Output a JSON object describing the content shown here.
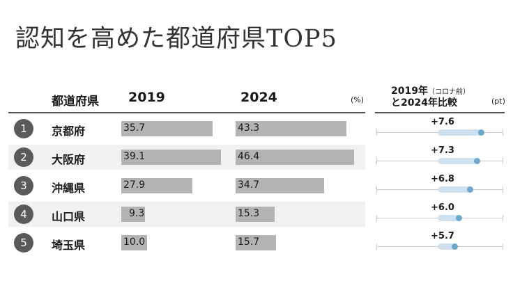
{
  "title": "認知を高めた都道府県TOP5",
  "chart_data": {
    "type": "bar",
    "title": "認知を高めた都道府県TOP5",
    "columns": {
      "prefecture": "都道府県",
      "y2019": "2019",
      "y2024": "2024",
      "percent_unit": "(%)",
      "diff_line1": "2019年",
      "diff_line1_note": "（コロナ前）",
      "diff_line2": "と2024年比較",
      "diff_unit": "(pt)"
    },
    "categories": [
      "京都府",
      "大阪府",
      "沖縄県",
      "山口県",
      "埼玉県"
    ],
    "ranks": [
      "1",
      "2",
      "3",
      "4",
      "5"
    ],
    "series": [
      {
        "name": "2019",
        "values": [
          35.7,
          39.1,
          27.9,
          9.3,
          10.0
        ]
      },
      {
        "name": "2024",
        "values": [
          43.3,
          46.4,
          34.7,
          15.3,
          15.7
        ]
      }
    ],
    "diff": [
      7.6,
      7.3,
      6.8,
      6.0,
      5.7
    ],
    "xlim": [
      0,
      48
    ],
    "diff_lim": [
      0,
      9
    ],
    "colors": {
      "bar": "#b3b3b3",
      "diff_track": "#cfe1ee",
      "diff_dot": "#6fa8cf",
      "rank_circle": "#5a5a5a"
    }
  }
}
